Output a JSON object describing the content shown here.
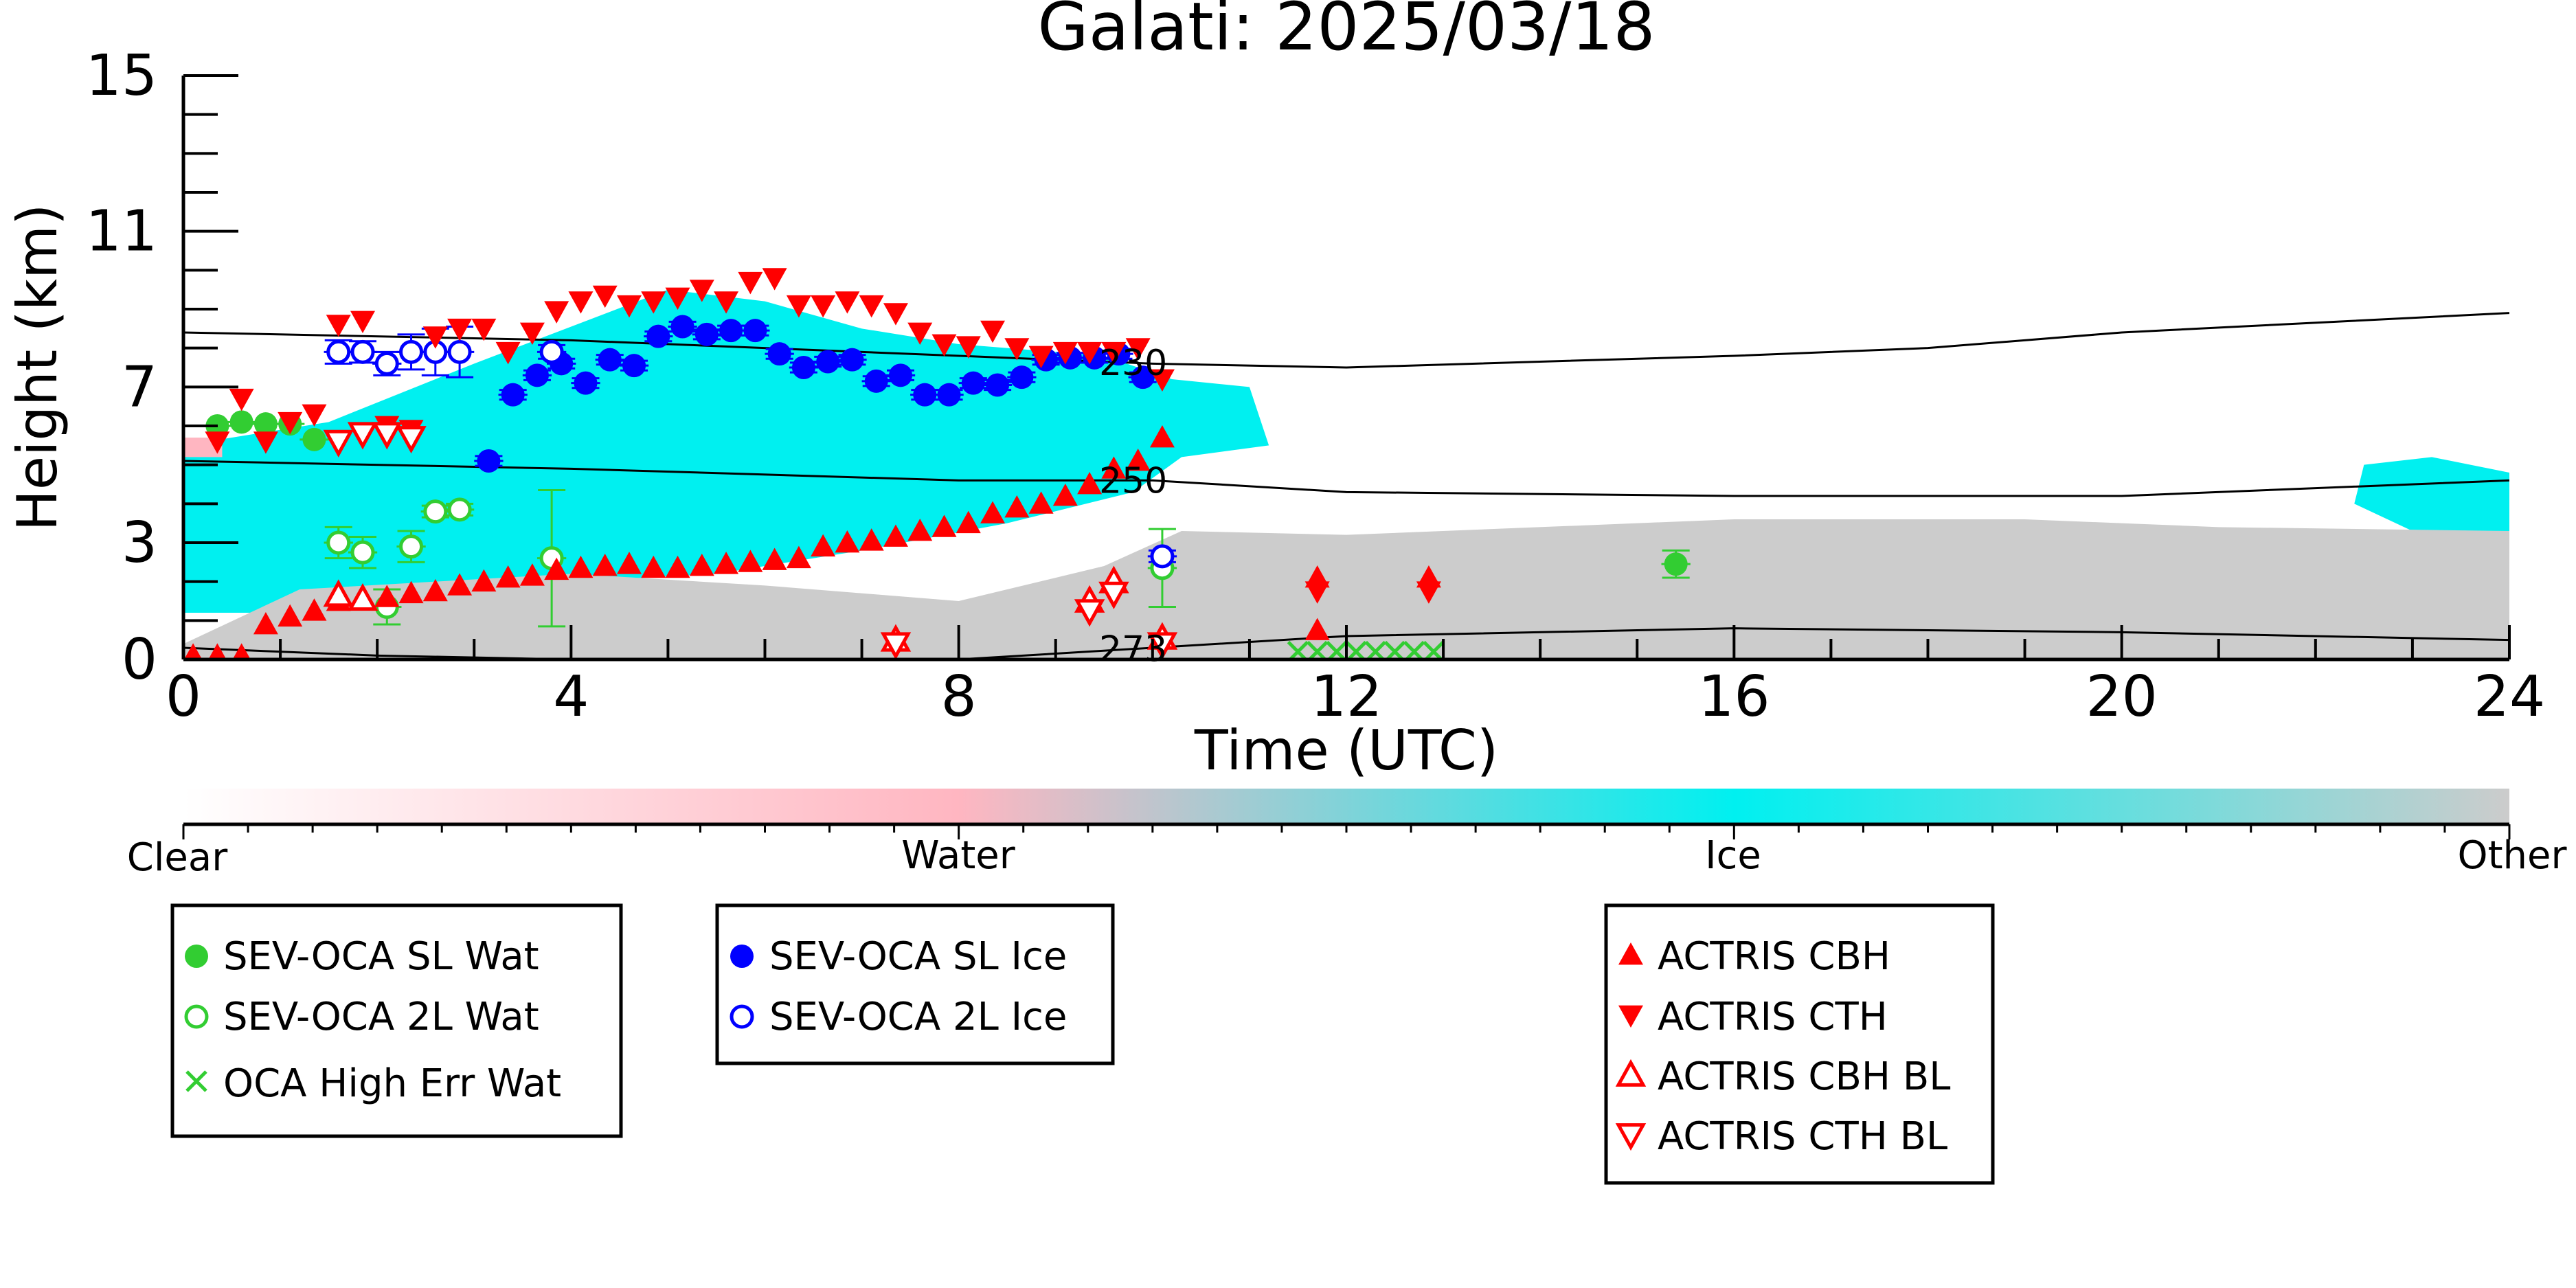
{
  "chart_data": {
    "type": "scatter",
    "title": "Galati: 2025/03/18",
    "xlabel": "Time (UTC)",
    "ylabel": "Height (km)",
    "xlim": [
      0,
      24
    ],
    "ylim": [
      0,
      15
    ],
    "x_ticks": [
      "0",
      "4",
      "8",
      "12",
      "16",
      "20",
      "24"
    ],
    "y_ticks": [
      "0",
      "3",
      "7",
      "11",
      "15"
    ],
    "grid": false,
    "colorbar": {
      "labels": [
        "Clear",
        "Water",
        "Ice",
        "Other"
      ],
      "colors": [
        "#ffffff",
        "#ffb6c1",
        "#00f0f0",
        "#cccccc"
      ]
    },
    "cloud_regions": [
      {
        "class": "Ice",
        "color": "#00f0f0",
        "points": [
          [
            0,
            5.5
          ],
          [
            1.5,
            6.1
          ],
          [
            3,
            7.6
          ],
          [
            5,
            9.5
          ],
          [
            6,
            9.2
          ],
          [
            7,
            8.5
          ],
          [
            8,
            8.1
          ],
          [
            9.5,
            7.8
          ],
          [
            10.2,
            7.2
          ],
          [
            11,
            7
          ],
          [
            11.2,
            5.5
          ],
          [
            10.3,
            5.2
          ],
          [
            9.8,
            4.3
          ],
          [
            8.5,
            3.5
          ],
          [
            7,
            2.8
          ],
          [
            5.5,
            2.2
          ],
          [
            4,
            2.0
          ],
          [
            2,
            1.6
          ],
          [
            1,
            1.2
          ],
          [
            0,
            1.2
          ]
        ]
      },
      {
        "class": "Ice",
        "color": "#00f0f0",
        "points": [
          [
            22.5,
            5.0
          ],
          [
            23.2,
            5.2
          ],
          [
            24,
            4.8
          ],
          [
            24,
            3.2
          ],
          [
            23,
            3.3
          ],
          [
            22.4,
            4.0
          ]
        ]
      },
      {
        "class": "Other",
        "color": "#cccccc",
        "points": [
          [
            1.2,
            1.8
          ],
          [
            4,
            2.2
          ],
          [
            6,
            1.9
          ],
          [
            8,
            1.5
          ],
          [
            9.5,
            2.4
          ],
          [
            10.3,
            3.3
          ],
          [
            12,
            3.2
          ],
          [
            16,
            3.6
          ],
          [
            19,
            3.6
          ],
          [
            21,
            3.4
          ],
          [
            24,
            3.3
          ],
          [
            24,
            0
          ],
          [
            0,
            0
          ],
          [
            0,
            0.4
          ]
        ]
      },
      {
        "class": "Water",
        "color": "#ffb6c1",
        "points": [
          [
            0,
            5.7
          ],
          [
            0.4,
            5.7
          ],
          [
            0.4,
            5.2
          ],
          [
            0,
            5.2
          ]
        ]
      }
    ],
    "temperature_contours": [
      {
        "label": "230",
        "label_x": 9.8,
        "points": [
          [
            0,
            8.4
          ],
          [
            4,
            8.2
          ],
          [
            8,
            7.8
          ],
          [
            10,
            7.6
          ],
          [
            12,
            7.5
          ],
          [
            16,
            7.8
          ],
          [
            18,
            8.0
          ],
          [
            20,
            8.4
          ],
          [
            24,
            8.9
          ]
        ]
      },
      {
        "label": "250",
        "label_x": 9.8,
        "points": [
          [
            0,
            5.1
          ],
          [
            4,
            4.9
          ],
          [
            8,
            4.6
          ],
          [
            10,
            4.6
          ],
          [
            12,
            4.3
          ],
          [
            16,
            4.2
          ],
          [
            20,
            4.2
          ],
          [
            24,
            4.6
          ]
        ]
      },
      {
        "label": "273",
        "label_x": 9.8,
        "points": [
          [
            0,
            0.3
          ],
          [
            2,
            0.1
          ],
          [
            4,
            0.0
          ],
          [
            8,
            0.0
          ],
          [
            10,
            0.3
          ],
          [
            12,
            0.6
          ],
          [
            16,
            0.8
          ],
          [
            20,
            0.7
          ],
          [
            24,
            0.5
          ]
        ]
      }
    ],
    "series": [
      {
        "name": "SEV-OCA SL Wat",
        "marker": "filled-circle",
        "color": "#32cd32",
        "points": [
          [
            0.35,
            6.0
          ],
          [
            0.6,
            6.1
          ],
          [
            0.85,
            6.05
          ],
          [
            1.1,
            6.05
          ],
          [
            1.35,
            5.65
          ],
          [
            15.4,
            2.45
          ]
        ],
        "errors": [
          [
            0.3,
            0
          ],
          [
            0.3,
            0
          ],
          [
            0.3,
            0
          ],
          [
            0.3,
            0
          ],
          [
            0.3,
            0
          ],
          [
            0.3,
            0.7
          ]
        ]
      },
      {
        "name": "SEV-OCA 2L Wat",
        "marker": "open-circle",
        "color": "#32cd32",
        "points": [
          [
            1.6,
            3.0
          ],
          [
            1.85,
            2.75
          ],
          [
            2.1,
            1.35
          ],
          [
            2.35,
            2.9
          ],
          [
            2.6,
            3.8
          ],
          [
            2.85,
            3.85
          ],
          [
            3.8,
            2.6
          ],
          [
            10.1,
            2.35
          ]
        ],
        "errors": [
          [
            0.3,
            0.8
          ],
          [
            0.3,
            0.8
          ],
          [
            0.3,
            0.9
          ],
          [
            0.3,
            0.8
          ],
          [
            0.3,
            0.3
          ],
          [
            0.3,
            0.3
          ],
          [
            0.3,
            3.5
          ],
          [
            0.3,
            2.0
          ]
        ]
      },
      {
        "name": "OCA High Err Wat",
        "marker": "x",
        "color": "#32cd32",
        "points": [
          [
            11.5,
            0.2
          ],
          [
            11.7,
            0.2
          ],
          [
            11.9,
            0.2
          ],
          [
            12.1,
            0.2
          ],
          [
            12.3,
            0.2
          ],
          [
            12.5,
            0.2
          ],
          [
            12.7,
            0.2
          ],
          [
            12.9,
            0.2
          ]
        ]
      },
      {
        "name": "SEV-OCA SL Ice",
        "marker": "filled-circle",
        "color": "#0000ff",
        "points": [
          [
            3.15,
            5.1
          ],
          [
            3.4,
            6.8
          ],
          [
            3.65,
            7.3
          ],
          [
            3.9,
            7.6
          ],
          [
            4.15,
            7.1
          ],
          [
            4.4,
            7.7
          ],
          [
            4.65,
            7.55
          ],
          [
            4.9,
            8.3
          ],
          [
            5.15,
            8.55
          ],
          [
            5.4,
            8.35
          ],
          [
            5.65,
            8.45
          ],
          [
            5.9,
            8.45
          ],
          [
            6.15,
            7.85
          ],
          [
            6.4,
            7.5
          ],
          [
            6.65,
            7.65
          ],
          [
            6.9,
            7.7
          ],
          [
            7.15,
            7.15
          ],
          [
            7.4,
            7.3
          ],
          [
            7.65,
            6.8
          ],
          [
            7.9,
            6.8
          ],
          [
            8.15,
            7.1
          ],
          [
            8.4,
            7.05
          ],
          [
            8.65,
            7.25
          ],
          [
            8.9,
            7.7
          ],
          [
            9.15,
            7.75
          ],
          [
            9.4,
            7.75
          ],
          [
            9.65,
            7.85
          ],
          [
            9.9,
            7.25
          ]
        ],
        "errors": [
          [
            0.3,
            0.25
          ],
          [
            0.3,
            0.25
          ],
          [
            0.3,
            0.25
          ],
          [
            0.3,
            0.25
          ],
          [
            0.3,
            0.25
          ],
          [
            0.3,
            0.25
          ],
          [
            0.3,
            0.25
          ],
          [
            0.3,
            0.25
          ],
          [
            0.3,
            0.25
          ],
          [
            0.3,
            0.25
          ],
          [
            0.3,
            0.25
          ],
          [
            0.3,
            0.25
          ],
          [
            0.3,
            0.25
          ],
          [
            0.3,
            0.25
          ],
          [
            0.3,
            0.25
          ],
          [
            0.3,
            0.25
          ],
          [
            0.3,
            0.25
          ],
          [
            0.3,
            0.25
          ],
          [
            0.3,
            0.25
          ],
          [
            0.3,
            0.25
          ],
          [
            0.3,
            0.25
          ],
          [
            0.3,
            0.25
          ],
          [
            0.3,
            0.25
          ],
          [
            0.3,
            0.25
          ],
          [
            0.3,
            0.25
          ],
          [
            0.3,
            0.25
          ],
          [
            0.3,
            0.25
          ],
          [
            0.3,
            0.25
          ]
        ]
      },
      {
        "name": "SEV-OCA 2L Ice",
        "marker": "open-circle",
        "color": "#0000ff",
        "points": [
          [
            1.6,
            7.9
          ],
          [
            1.85,
            7.9
          ],
          [
            2.1,
            7.6
          ],
          [
            2.35,
            7.9
          ],
          [
            2.6,
            7.9
          ],
          [
            2.85,
            7.9
          ],
          [
            3.8,
            7.9
          ],
          [
            10.1,
            2.65
          ]
        ],
        "errors": [
          [
            0.3,
            0.6
          ],
          [
            0.3,
            0.55
          ],
          [
            0.3,
            0.6
          ],
          [
            0.3,
            0.9
          ],
          [
            0.3,
            1.2
          ],
          [
            0.3,
            1.3
          ],
          [
            0.3,
            0.35
          ],
          [
            0.3,
            0.3
          ]
        ]
      },
      {
        "name": "ACTRIS CBH",
        "marker": "filled-triangle-up",
        "color": "#ff0000",
        "points": [
          [
            0.1,
            0.1
          ],
          [
            0.35,
            0.1
          ],
          [
            0.6,
            0.1
          ],
          [
            0.85,
            0.9
          ],
          [
            1.1,
            1.1
          ],
          [
            1.35,
            1.25
          ],
          [
            1.6,
            1.5
          ],
          [
            1.85,
            1.55
          ],
          [
            2.1,
            1.6
          ],
          [
            2.35,
            1.7
          ],
          [
            2.6,
            1.75
          ],
          [
            2.85,
            1.9
          ],
          [
            3.1,
            2.0
          ],
          [
            3.35,
            2.1
          ],
          [
            3.6,
            2.15
          ],
          [
            3.85,
            2.3
          ],
          [
            4.1,
            2.35
          ],
          [
            4.35,
            2.4
          ],
          [
            4.6,
            2.45
          ],
          [
            4.85,
            2.35
          ],
          [
            5.1,
            2.35
          ],
          [
            5.35,
            2.4
          ],
          [
            5.6,
            2.45
          ],
          [
            5.85,
            2.5
          ],
          [
            6.1,
            2.55
          ],
          [
            6.35,
            2.6
          ],
          [
            6.6,
            2.9
          ],
          [
            6.85,
            3.0
          ],
          [
            7.1,
            3.05
          ],
          [
            7.35,
            3.15
          ],
          [
            7.6,
            3.3
          ],
          [
            7.85,
            3.4
          ],
          [
            8.1,
            3.5
          ],
          [
            8.35,
            3.75
          ],
          [
            8.6,
            3.9
          ],
          [
            8.85,
            4.0
          ],
          [
            9.1,
            4.2
          ],
          [
            9.35,
            4.5
          ],
          [
            9.6,
            4.9
          ],
          [
            9.85,
            5.1
          ],
          [
            10.1,
            5.7
          ],
          [
            11.7,
            0.75
          ],
          [
            11.7,
            2.1
          ],
          [
            12.85,
            2.1
          ]
        ]
      },
      {
        "name": "ACTRIS CTH",
        "marker": "filled-triangle-down",
        "color": "#ff0000",
        "points": [
          [
            0.35,
            5.6
          ],
          [
            0.6,
            6.7
          ],
          [
            0.85,
            5.6
          ],
          [
            1.1,
            6.1
          ],
          [
            1.35,
            6.3
          ],
          [
            1.6,
            8.6
          ],
          [
            1.85,
            8.7
          ],
          [
            2.1,
            6.0
          ],
          [
            2.35,
            5.9
          ],
          [
            2.6,
            8.3
          ],
          [
            2.85,
            8.5
          ],
          [
            3.1,
            8.5
          ],
          [
            3.35,
            7.9
          ],
          [
            3.6,
            8.4
          ],
          [
            3.85,
            8.95
          ],
          [
            4.1,
            9.2
          ],
          [
            4.35,
            9.35
          ],
          [
            4.6,
            9.1
          ],
          [
            4.85,
            9.2
          ],
          [
            5.1,
            9.3
          ],
          [
            5.35,
            9.5
          ],
          [
            5.6,
            9.2
          ],
          [
            5.85,
            9.7
          ],
          [
            6.1,
            9.8
          ],
          [
            6.35,
            9.1
          ],
          [
            6.6,
            9.1
          ],
          [
            6.85,
            9.2
          ],
          [
            7.1,
            9.1
          ],
          [
            7.35,
            8.9
          ],
          [
            7.6,
            8.4
          ],
          [
            7.85,
            8.1
          ],
          [
            8.1,
            8.05
          ],
          [
            8.35,
            8.45
          ],
          [
            8.6,
            8.0
          ],
          [
            8.85,
            7.8
          ],
          [
            9.1,
            7.9
          ],
          [
            9.35,
            7.9
          ],
          [
            9.6,
            7.9
          ],
          [
            9.85,
            8.0
          ],
          [
            10.1,
            7.2
          ],
          [
            11.7,
            1.75
          ],
          [
            12.85,
            1.75
          ]
        ]
      },
      {
        "name": "ACTRIS CBH BL",
        "marker": "open-triangle-up",
        "color": "#ff0000",
        "points": [
          [
            1.6,
            1.65
          ],
          [
            1.85,
            1.55
          ],
          [
            7.35,
            0.5
          ],
          [
            9.35,
            1.5
          ],
          [
            9.6,
            2.0
          ],
          [
            10.1,
            0.55
          ]
        ]
      },
      {
        "name": "ACTRIS CTH BL",
        "marker": "open-triangle-down",
        "color": "#ff0000",
        "points": [
          [
            1.6,
            5.6
          ],
          [
            1.85,
            5.8
          ],
          [
            2.1,
            5.8
          ],
          [
            2.35,
            5.7
          ],
          [
            7.35,
            0.4
          ],
          [
            9.35,
            1.25
          ],
          [
            9.6,
            1.7
          ],
          [
            10.1,
            0.4
          ]
        ]
      }
    ],
    "legend_groups": [
      [
        "SEV-OCA SL Wat",
        "SEV-OCA 2L Wat",
        "OCA High Err Wat"
      ],
      [
        "SEV-OCA SL Ice",
        "SEV-OCA 2L Ice"
      ],
      [
        "ACTRIS CBH",
        "ACTRIS CTH",
        "ACTRIS CBH BL",
        "ACTRIS CTH BL"
      ]
    ]
  }
}
